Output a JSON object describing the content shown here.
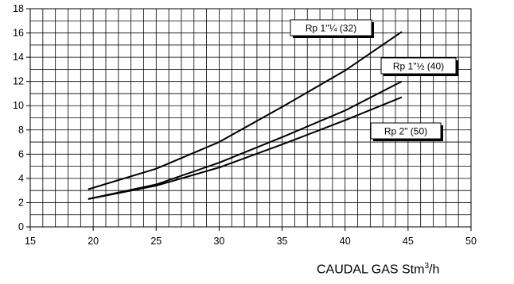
{
  "chart_data": {
    "type": "line",
    "title": "",
    "xlabel": "CAUDAL GAS Stm",
    "xlabel_superscript": "3",
    "xlabel_suffix": "/h",
    "ylabel": "",
    "xlim": [
      15,
      50
    ],
    "ylim": [
      0,
      18
    ],
    "x_ticks": [
      "15",
      "20",
      "25",
      "30",
      "35",
      "40",
      "45",
      "50"
    ],
    "y_ticks": [
      "0",
      "2",
      "4",
      "6",
      "8",
      "10",
      "12",
      "14",
      "16",
      "18"
    ],
    "grid": true,
    "series": [
      {
        "name": "Rp 1\"¼ (32)",
        "x": [
          19.6,
          25,
          30,
          35,
          40,
          44.5
        ],
        "y": [
          3.1,
          4.8,
          7.0,
          9.9,
          12.9,
          16.1
        ]
      },
      {
        "name": "Rp 1\"½ (40)",
        "x": [
          19.6,
          25,
          30,
          35,
          40,
          44.5
        ],
        "y": [
          2.3,
          3.5,
          5.3,
          7.4,
          9.6,
          12.0
        ]
      },
      {
        "name": "Rp 2\" (50)",
        "x": [
          19.6,
          25,
          30,
          35,
          40,
          44.5
        ],
        "y": [
          2.3,
          3.4,
          4.9,
          6.8,
          8.8,
          10.7
        ]
      }
    ]
  }
}
